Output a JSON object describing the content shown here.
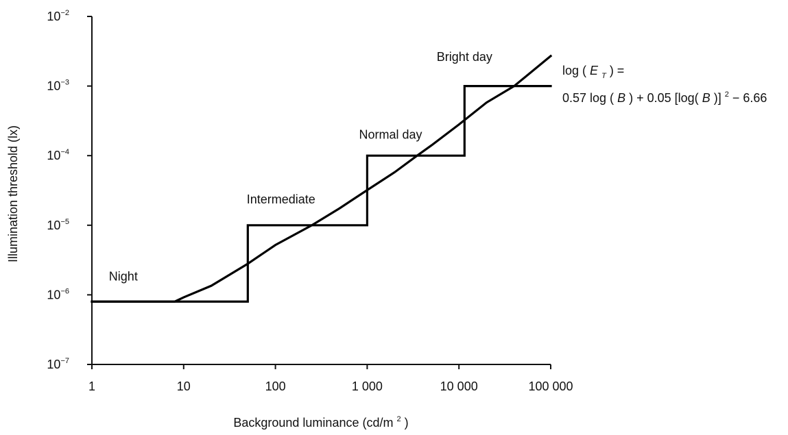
{
  "chart_data": {
    "type": "line",
    "title": "",
    "xlabel": {
      "main": "Background luminance (cd/m",
      "sup": "2",
      "end": ")"
    },
    "ylabel": "Illumination threshold (lx)",
    "x_scale": "log",
    "y_scale": "log",
    "xlim": [
      1,
      100000
    ],
    "ylim": [
      1e-07,
      0.01
    ],
    "x_ticks": [
      {
        "value": 1,
        "label": "1"
      },
      {
        "value": 10,
        "label": "10"
      },
      {
        "value": 100,
        "label": "100"
      },
      {
        "value": 1000,
        "label": "1 000"
      },
      {
        "value": 10000,
        "label": "10 000"
      },
      {
        "value": 100000,
        "label": "100 000"
      }
    ],
    "y_ticks": [
      {
        "value": 0.01,
        "base": "10",
        "exp": "−2"
      },
      {
        "value": 0.001,
        "base": "10",
        "exp": "−3"
      },
      {
        "value": 0.0001,
        "base": "10",
        "exp": "−4"
      },
      {
        "value": 1e-05,
        "base": "10",
        "exp": "−5"
      },
      {
        "value": 1e-06,
        "base": "10",
        "exp": "−6"
      },
      {
        "value": 1e-07,
        "base": "10",
        "exp": "−7"
      }
    ],
    "grid": false,
    "series": [
      {
        "type": "step",
        "points": [
          [
            1,
            8e-07
          ],
          [
            50,
            8e-07
          ],
          [
            50,
            1e-05
          ],
          [
            1000,
            1e-05
          ],
          [
            1000,
            0.0001
          ],
          [
            11500,
            0.0001
          ],
          [
            11500,
            0.001
          ],
          [
            100000,
            0.001
          ]
        ]
      },
      {
        "type": "curve",
        "points": [
          [
            1,
            8e-07
          ],
          [
            8,
            8e-07
          ],
          [
            10,
            9.2e-07
          ],
          [
            20,
            1.35e-06
          ],
          [
            50,
            2.8e-06
          ],
          [
            100,
            5.2e-06
          ],
          [
            250,
            1e-05
          ],
          [
            500,
            1.75e-05
          ],
          [
            1000,
            3.2e-05
          ],
          [
            2000,
            5.8e-05
          ],
          [
            3500,
            0.0001
          ],
          [
            5000,
            0.00014
          ],
          [
            10000,
            0.00028
          ],
          [
            20000,
            0.00058
          ],
          [
            40000,
            0.001
          ],
          [
            100000,
            0.0027
          ]
        ]
      }
    ],
    "annotations": [
      {
        "key": "night",
        "text": "Night",
        "x": 2.2,
        "y": 1.6e-06
      },
      {
        "key": "intermediate",
        "text": "Intermediate",
        "x": 115,
        "y": 2.05e-05
      },
      {
        "key": "normal_day",
        "text": "Normal day",
        "x": 1800,
        "y": 0.000175
      },
      {
        "key": "bright_day",
        "text": "Bright day",
        "x": 11500,
        "y": 0.0023
      }
    ],
    "formula": {
      "line1_prefix": "log (",
      "line1_var": "E",
      "line1_sub": "T",
      "line1_suffix": ") =",
      "line2_a": "0.57 log (",
      "line2_b": "B",
      "line2_c": ") + 0.05 [log(",
      "line2_d": "B",
      "line2_e": ")] ",
      "line2_sup": "2",
      "line2_f": " − 6.66"
    }
  }
}
